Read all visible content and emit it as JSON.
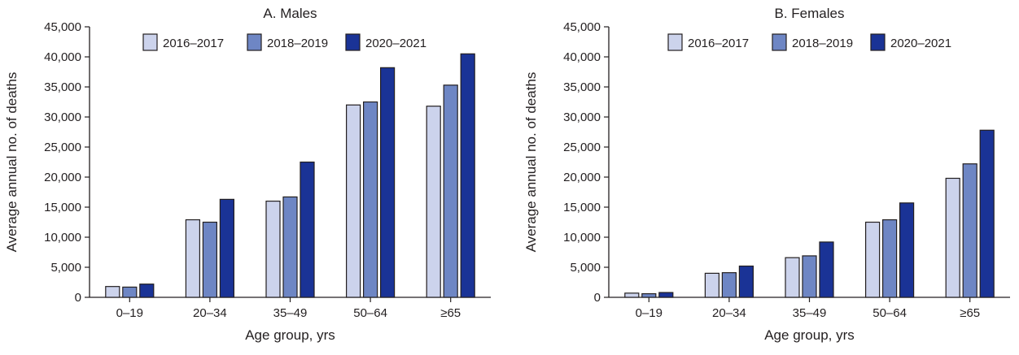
{
  "chart_data": [
    {
      "type": "bar",
      "title": "A. Males",
      "xlabel": "Age group, yrs",
      "ylabel": "Average annual no. of deaths",
      "ylim": [
        0,
        45000
      ],
      "yticks": [
        "0",
        "5,000",
        "10,000",
        "15,000",
        "20,000",
        "25,000",
        "30,000",
        "35,000",
        "40,000",
        "45,000"
      ],
      "categories": [
        "0–19",
        "20–34",
        "35–49",
        "50–64",
        "≥65"
      ],
      "legend_position": "top-center",
      "grid": false,
      "series": [
        {
          "name": "2016–2017",
          "color": "#ccd3ec",
          "values": [
            1800,
            12900,
            16000,
            32000,
            31800
          ]
        },
        {
          "name": "2018–2019",
          "color": "#6e86c4",
          "values": [
            1700,
            12500,
            16700,
            32500,
            35300
          ]
        },
        {
          "name": "2020–2021",
          "color": "#1a3396",
          "values": [
            2200,
            16300,
            22500,
            38200,
            40500
          ]
        }
      ]
    },
    {
      "type": "bar",
      "title": "B. Females",
      "xlabel": "Age group, yrs",
      "ylabel": "Average annual no. of deaths",
      "ylim": [
        0,
        45000
      ],
      "yticks": [
        "0",
        "5,000",
        "10,000",
        "15,000",
        "20,000",
        "25,000",
        "30,000",
        "35,000",
        "40,000",
        "45,000"
      ],
      "categories": [
        "0–19",
        "20–34",
        "35–49",
        "50–64",
        "≥65"
      ],
      "legend_position": "top-center",
      "grid": false,
      "series": [
        {
          "name": "2016–2017",
          "color": "#ccd3ec",
          "values": [
            700,
            4000,
            6600,
            12500,
            19800
          ]
        },
        {
          "name": "2018–2019",
          "color": "#6e86c4",
          "values": [
            600,
            4100,
            6900,
            12900,
            22200
          ]
        },
        {
          "name": "2020–2021",
          "color": "#1a3396",
          "values": [
            800,
            5200,
            9200,
            15700,
            27800
          ]
        }
      ]
    }
  ]
}
